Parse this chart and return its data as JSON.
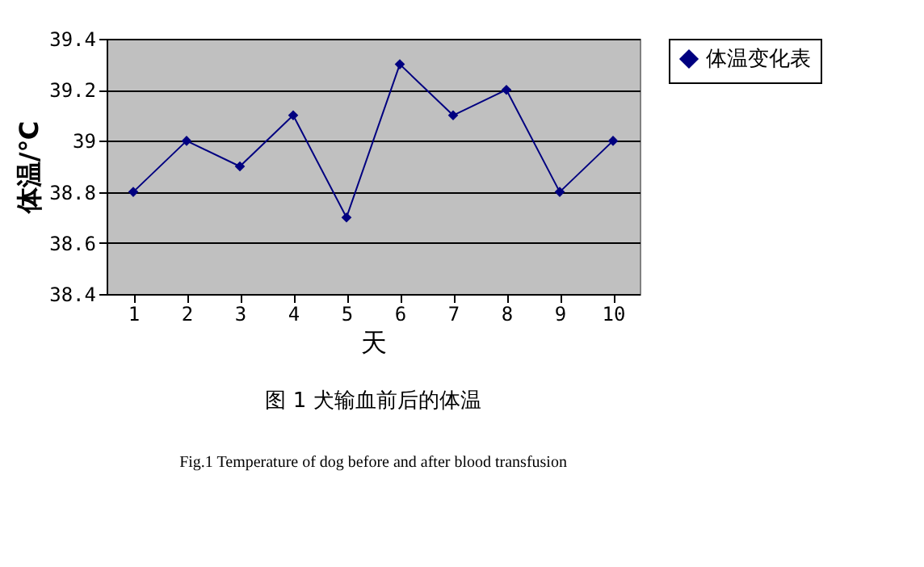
{
  "chart_data": {
    "type": "line",
    "xlabel": "天",
    "ylabel": "体温/℃",
    "categories": [
      "1",
      "2",
      "3",
      "4",
      "5",
      "6",
      "7",
      "8",
      "9",
      "10"
    ],
    "series": [
      {
        "name": "体温变化表",
        "color": "#000080",
        "values": [
          38.8,
          39.0,
          38.9,
          39.1,
          38.7,
          39.3,
          39.1,
          39.2,
          38.8,
          39.0
        ]
      }
    ],
    "ylim": [
      38.4,
      39.4
    ],
    "yticks": [
      38.4,
      38.6,
      38.8,
      39,
      39.2,
      39.4
    ],
    "grid": "y",
    "legend": "right",
    "marker": "diamond",
    "line_style": "solid",
    "annotations": [
      "图 1 犬输血前后的体温",
      "Fig.1 Temperature of dog before and after blood transfusion"
    ]
  }
}
